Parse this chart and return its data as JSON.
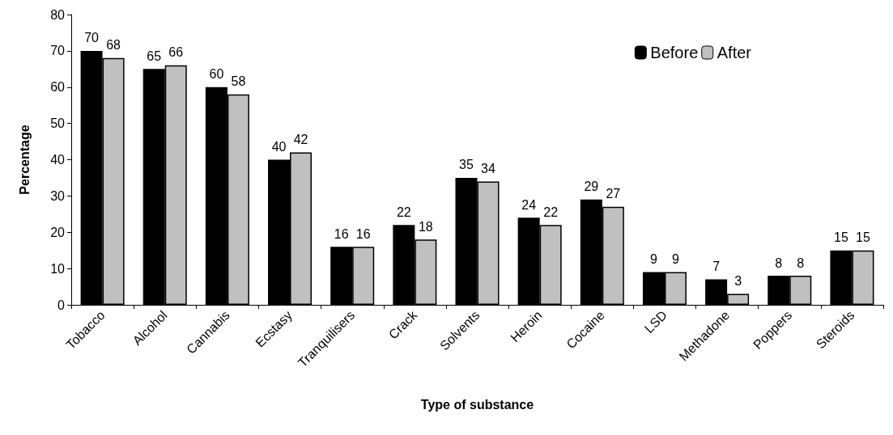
{
  "chart_data": {
    "type": "bar",
    "xlabel": "Type of substance",
    "ylabel": "Percentage",
    "categories": [
      "Tobacco",
      "Alcohol",
      "Cannabis",
      "Ecstasy",
      "Tranquilisers",
      "Crack",
      "Solvents",
      "Heroin",
      "Cocaine",
      "LSD",
      "Methadone",
      "Poppers",
      "Steroids"
    ],
    "series": [
      {
        "name": "Before",
        "color": "#000000",
        "values": [
          70,
          65,
          60,
          40,
          16,
          22,
          35,
          24,
          29,
          9,
          7,
          8,
          15
        ]
      },
      {
        "name": "After",
        "color": "#c0c0c0",
        "values": [
          68,
          66,
          58,
          42,
          16,
          18,
          34,
          22,
          27,
          9,
          3,
          8,
          15
        ]
      }
    ],
    "ylim": [
      0,
      80
    ],
    "yticks": [
      0,
      10,
      20,
      30,
      40,
      50,
      60,
      70,
      80
    ],
    "grid": false,
    "legend": "top right",
    "data_labels": true
  }
}
